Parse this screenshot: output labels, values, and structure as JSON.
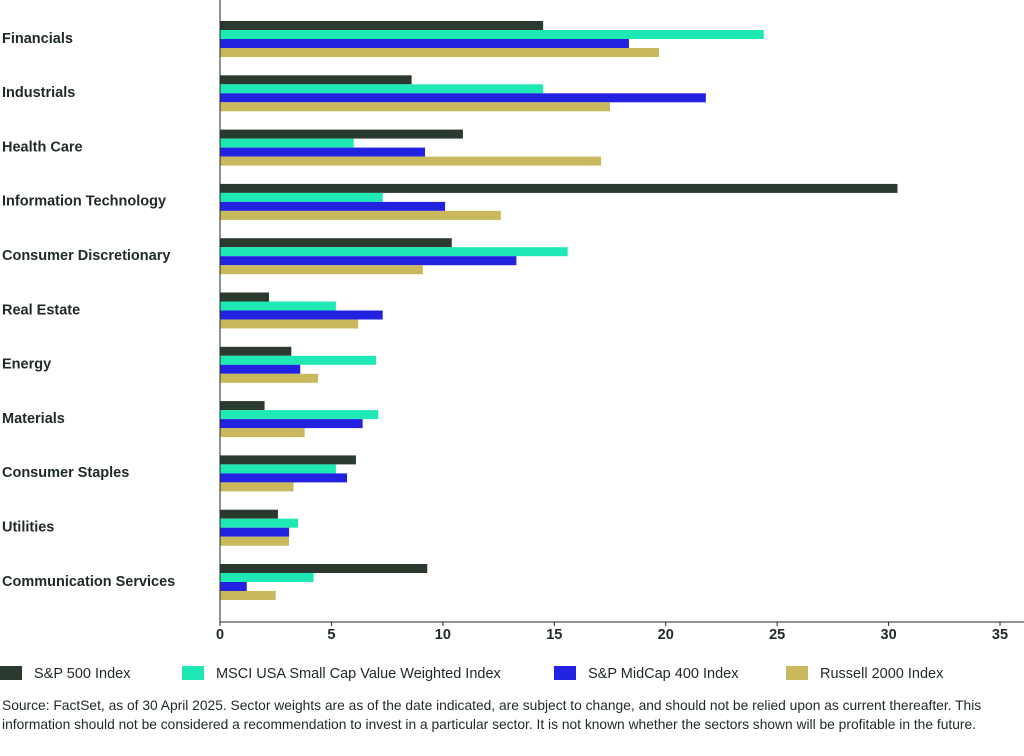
{
  "chart_data": {
    "type": "bar",
    "orientation": "horizontal",
    "categories": [
      "Financials",
      "Industrials",
      "Health Care",
      "Information Technology",
      "Consumer Discretionary",
      "Real Estate",
      "Energy",
      "Materials",
      "Consumer Staples",
      "Utilities",
      "Communication Services"
    ],
    "series": [
      {
        "name": "S&P 500 Index",
        "color": "#2a3a2f",
        "values": [
          14.5,
          8.6,
          10.9,
          30.4,
          10.4,
          2.2,
          3.2,
          2.0,
          6.1,
          2.6,
          9.3
        ]
      },
      {
        "name": "MSCI USA Small Cap Value Weighted Index",
        "color": "#1ee8b4",
        "values": [
          24.4,
          14.5,
          6.0,
          7.3,
          15.6,
          5.2,
          7.0,
          7.1,
          5.2,
          3.5,
          4.2
        ]
      },
      {
        "name": "S&P MidCap 400 Index",
        "color": "#2222e0",
        "values": [
          18.35,
          21.8,
          9.2,
          10.1,
          13.3,
          7.3,
          3.6,
          6.4,
          5.7,
          3.1,
          1.2
        ]
      },
      {
        "name": "Russell 2000 Index",
        "color": "#c9b95c",
        "values": [
          19.7,
          17.5,
          17.1,
          12.6,
          9.1,
          6.2,
          4.4,
          3.8,
          3.3,
          3.1,
          2.5
        ]
      }
    ],
    "xlim": [
      0,
      35
    ],
    "xticks": [
      0,
      5,
      10,
      15,
      20,
      25,
      30,
      35
    ],
    "source": "Source: FactSet, as of 30 April 2025. Sector weights are as of the date indicated, are subject to change, and should not be relied upon as current thereafter. This information should not be considered a recommendation to invest in a particular sector. It is not known whether the sectors shown will be profitable in the future."
  }
}
